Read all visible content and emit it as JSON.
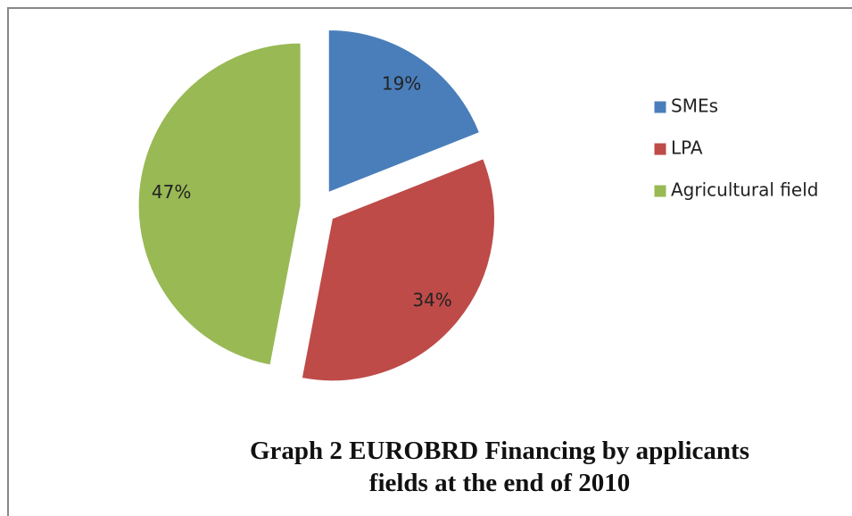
{
  "chart_data": {
    "type": "pie",
    "title": "Graph 2 EUROBRD Financing by applicants fields at the end of 2010",
    "categories": [
      "SMEs",
      "LPA",
      "Agricultural field"
    ],
    "values": [
      19,
      34,
      47
    ],
    "value_labels": [
      "19%",
      "34%",
      "47%"
    ],
    "colors": [
      "#4a7ebb",
      "#be4b48",
      "#98b954"
    ],
    "legend": "right"
  }
}
